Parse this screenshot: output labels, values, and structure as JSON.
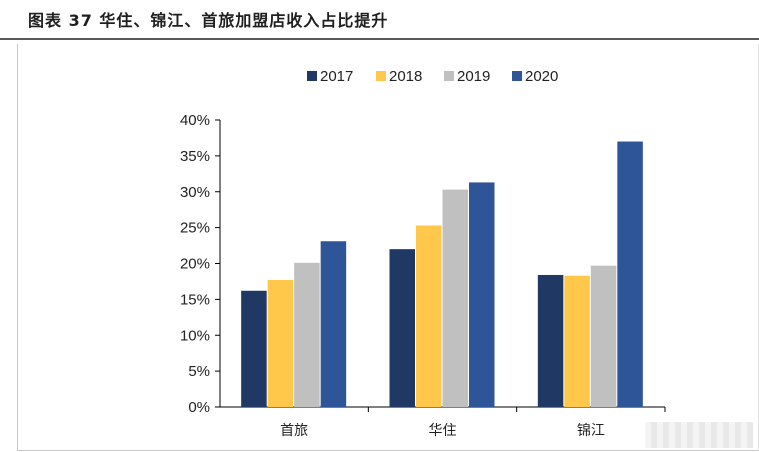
{
  "header": {
    "title": "图表 37 华住、锦江、首旅加盟店收入占比提升"
  },
  "chart_data": {
    "type": "bar",
    "title": "",
    "xlabel": "",
    "ylabel": "",
    "categories": [
      "首旅",
      "华住",
      "锦江"
    ],
    "series": [
      {
        "name": "2017",
        "color": "#1f3864",
        "values": [
          16.2,
          22.0,
          18.4
        ]
      },
      {
        "name": "2018",
        "color": "#ffc84b",
        "values": [
          17.7,
          25.3,
          18.3
        ]
      },
      {
        "name": "2019",
        "color": "#c0c0c0",
        "values": [
          20.1,
          30.3,
          19.7
        ]
      },
      {
        "name": "2020",
        "color": "#2e5597",
        "values": [
          23.1,
          31.3,
          37.0
        ]
      }
    ],
    "ylim": [
      0,
      40
    ],
    "yticks": [
      0,
      5,
      10,
      15,
      20,
      25,
      30,
      35,
      40
    ],
    "ytick_labels": [
      "0%",
      "5%",
      "10%",
      "15%",
      "20%",
      "25%",
      "30%",
      "35%",
      "40%"
    ],
    "legend_position": "top-center",
    "grid": false
  }
}
